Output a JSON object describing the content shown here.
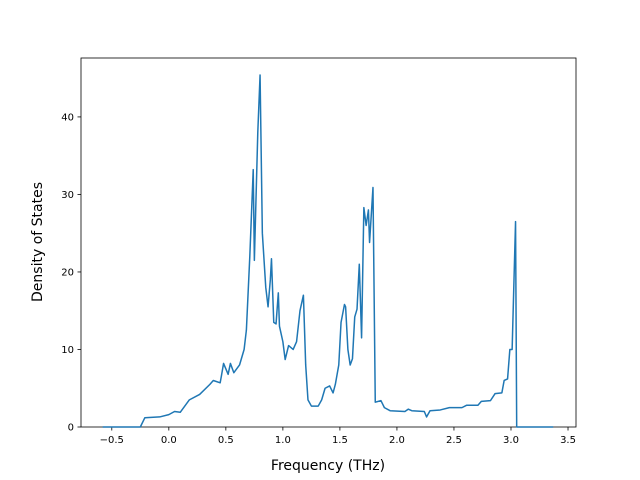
{
  "chart_data": {
    "type": "line",
    "x_label": "Frequency (THz)",
    "y_label": "Density of States",
    "x": [
      -0.58,
      -0.25,
      -0.21,
      -0.08,
      0.0,
      0.05,
      0.1,
      0.18,
      0.27,
      0.36,
      0.39,
      0.45,
      0.46,
      0.48,
      0.52,
      0.54,
      0.57,
      0.62,
      0.66,
      0.68,
      0.71,
      0.74,
      0.75,
      0.78,
      0.8,
      0.82,
      0.85,
      0.87,
      0.89,
      0.9,
      0.92,
      0.94,
      0.96,
      0.97,
      1.0,
      1.02,
      1.05,
      1.09,
      1.12,
      1.15,
      1.18,
      1.2,
      1.22,
      1.25,
      1.31,
      1.34,
      1.37,
      1.41,
      1.44,
      1.46,
      1.49,
      1.51,
      1.54,
      1.55,
      1.57,
      1.59,
      1.61,
      1.63,
      1.65,
      1.67,
      1.69,
      1.71,
      1.73,
      1.75,
      1.76,
      1.79,
      1.81,
      1.86,
      1.89,
      1.94,
      2.07,
      2.1,
      2.13,
      2.24,
      2.26,
      2.29,
      2.38,
      2.46,
      2.57,
      2.61,
      2.71,
      2.74,
      2.82,
      2.86,
      2.92,
      2.94,
      2.97,
      2.99,
      3.01,
      3.04,
      3.05,
      3.37
    ],
    "series": [
      {
        "color": "#1f77b4",
        "values": [
          0,
          0,
          1.2,
          1.3,
          1.6,
          2.0,
          1.9,
          3.5,
          4.2,
          5.5,
          6.0,
          5.7,
          6.5,
          8.2,
          6.8,
          8.2,
          7.0,
          8.0,
          10,
          12.5,
          22,
          33.2,
          21.5,
          38,
          45.4,
          25,
          18,
          15.5,
          19,
          21.7,
          13.5,
          13.3,
          17.3,
          13,
          11,
          8.7,
          10.5,
          10,
          11,
          15,
          17,
          8,
          3.5,
          2.7,
          2.7,
          3.5,
          5,
          5.3,
          4.4,
          5.5,
          8,
          13.5,
          15.8,
          15.5,
          10,
          8,
          8.8,
          14.2,
          15.2,
          21,
          11.5,
          28.3,
          26,
          28,
          23.8,
          30.9,
          3.2,
          3.4,
          2.5,
          2.1,
          2.0,
          2.3,
          2.1,
          2.0,
          1.3,
          2.1,
          2.2,
          2.5,
          2.5,
          2.8,
          2.8,
          3.3,
          3.4,
          4.3,
          4.4,
          6.0,
          6.2,
          10,
          10,
          26.5,
          0,
          0
        ]
      }
    ],
    "xlim": [
      -0.77,
      3.57
    ],
    "xticks": [
      {
        "value": -0.5,
        "label": "−0.5"
      },
      {
        "value": 0,
        "label": "0.0"
      },
      0.5,
      {
        "value": 1,
        "label": "1.0"
      },
      1.5,
      {
        "value": 2,
        "label": "2.0"
      },
      2.5,
      {
        "value": 3,
        "label": "3.0"
      },
      3.5
    ],
    "ylim": [
      0,
      47.6
    ],
    "yticks": [
      0,
      10,
      20,
      30,
      40
    ]
  }
}
